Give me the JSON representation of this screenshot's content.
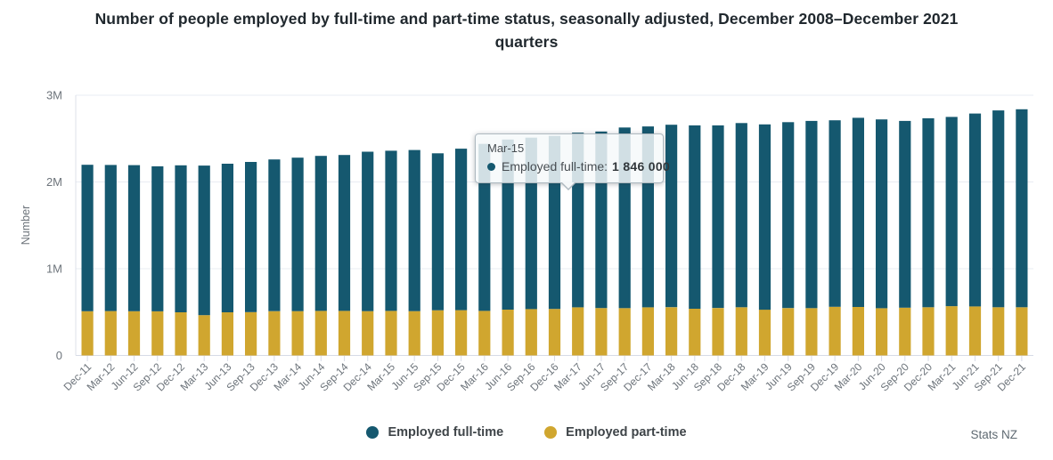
{
  "title": "Number of people employed by full-time and part-time status, seasonally adjusted, December 2008–December 2021 quarters",
  "source": "Stats NZ",
  "tooltip": {
    "label": "Mar-15",
    "series_label": "Employed full-time:",
    "value": "1 846 000",
    "marker_color": "#15586f"
  },
  "legend": [
    {
      "label": "Employed full-time",
      "color": "#15586f"
    },
    {
      "label": "Employed part-time",
      "color": "#d0a62f"
    }
  ],
  "y_axis": {
    "label": "Number",
    "tick_labels": [
      "0",
      "1M",
      "2M",
      "3M"
    ]
  },
  "chart_data": {
    "type": "bar",
    "stacked": true,
    "title": "Number of people employed by full-time and part-time status, seasonally adjusted, December 2008–December 2021 quarters",
    "xlabel": "",
    "ylabel": "Number",
    "ylim": [
      0,
      3000000
    ],
    "yticks": [
      0,
      1000000,
      2000000,
      3000000
    ],
    "ytick_labels": [
      "0",
      "1M",
      "2M",
      "3M"
    ],
    "grid": true,
    "legend_position": "bottom",
    "categories": [
      "Dec-11",
      "Mar-12",
      "Jun-12",
      "Sep-12",
      "Dec-12",
      "Mar-13",
      "Jun-13",
      "Sep-13",
      "Dec-13",
      "Mar-14",
      "Jun-14",
      "Sep-14",
      "Dec-14",
      "Mar-15",
      "Jun-15",
      "Sep-15",
      "Dec-15",
      "Mar-16",
      "Jun-16",
      "Sep-16",
      "Dec-16",
      "Mar-17",
      "Jun-17",
      "Sep-17",
      "Dec-17",
      "Mar-18",
      "Jun-18",
      "Sep-18",
      "Dec-18",
      "Mar-19",
      "Jun-19",
      "Sep-19",
      "Dec-19",
      "Mar-20",
      "Jun-20",
      "Sep-20",
      "Dec-20",
      "Mar-21",
      "Jun-21",
      "Sep-21",
      "Dec-21"
    ],
    "series": [
      {
        "name": "Employed part-time",
        "color": "#d0a62f",
        "values": [
          510000,
          512000,
          510000,
          508000,
          498000,
          465000,
          497000,
          500000,
          510000,
          511000,
          514000,
          514000,
          511000,
          514000,
          511000,
          521000,
          522000,
          514000,
          528000,
          535000,
          536000,
          555000,
          547000,
          546000,
          555000,
          556000,
          538000,
          547000,
          556000,
          528000,
          546000,
          546000,
          561000,
          559000,
          545000,
          551000,
          556000,
          568000,
          565000,
          556000,
          556000
        ]
      },
      {
        "name": "Employed full-time",
        "color": "#15586f",
        "values": [
          1688000,
          1684000,
          1684000,
          1672000,
          1694000,
          1724000,
          1713000,
          1731000,
          1749000,
          1769000,
          1787000,
          1797000,
          1838000,
          1846000,
          1857000,
          1809000,
          1862000,
          1925000,
          1961000,
          1976000,
          1995000,
          2013000,
          2035000,
          2082000,
          2085000,
          2103000,
          2114000,
          2105000,
          2123000,
          2136000,
          2143000,
          2158000,
          2150000,
          2180000,
          2176000,
          2153000,
          2178000,
          2182000,
          2224000,
          2269000,
          2282000
        ]
      }
    ],
    "annotation": {
      "hovered_category": "Mar-15",
      "hovered_series": "Employed full-time",
      "hovered_value": 1846000
    }
  }
}
